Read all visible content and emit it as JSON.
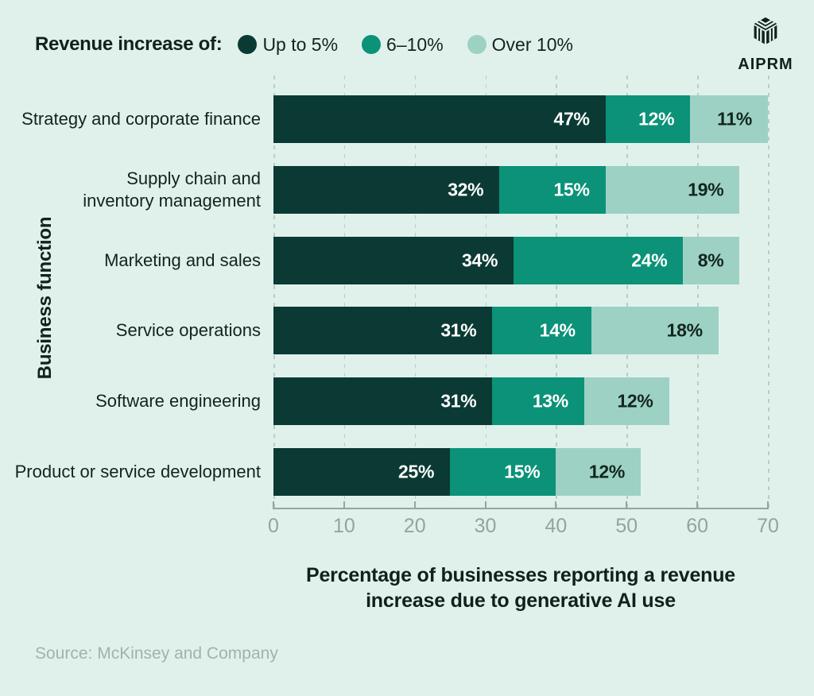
{
  "colors": {
    "background": "#E0F1EC",
    "series_dark": "#0A3A33",
    "series_mid": "#0B9278",
    "series_light": "#9DD1C4",
    "axis": "#93A5A0",
    "grid": "#B7CEC7",
    "text": "#10211E",
    "muted": "#9FB3AC"
  },
  "legend": {
    "title": "Revenue increase of:",
    "items": [
      {
        "label": "Up to 5%",
        "color": "#0A3A33"
      },
      {
        "label": "6–10%",
        "color": "#0B9278"
      },
      {
        "label": "Over 10%",
        "color": "#9DD1C4"
      }
    ]
  },
  "logo": {
    "brand": "AIPRM"
  },
  "chart_data": {
    "type": "bar",
    "orientation": "horizontal",
    "stacked": true,
    "title": "",
    "xlabel": "Percentage of businesses reporting a revenue\nincrease due to generative AI use",
    "ylabel": "Business function",
    "xlim": [
      0,
      70
    ],
    "xticks": [
      0,
      10,
      20,
      30,
      40,
      50,
      60,
      70
    ],
    "grid": "vertical-dashed",
    "legend_position": "top-left",
    "value_suffix": "%",
    "categories": [
      "Strategy and corporate finance",
      "Supply chain and\ninventory management",
      "Marketing and sales",
      "Service operations",
      "Software engineering",
      "Product or service development"
    ],
    "series": [
      {
        "name": "Up to 5%",
        "color": "#0A3A33",
        "label_color": "#FFFFFF",
        "values": [
          47,
          32,
          34,
          31,
          31,
          25
        ]
      },
      {
        "name": "6–10%",
        "color": "#0B9278",
        "label_color": "#FFFFFF",
        "values": [
          12,
          15,
          24,
          14,
          13,
          15
        ]
      },
      {
        "name": "Over 10%",
        "color": "#9DD1C4",
        "label_color": "#12261F",
        "values": [
          11,
          19,
          8,
          18,
          12,
          12
        ]
      }
    ]
  },
  "source": "Source: McKinsey and Company"
}
